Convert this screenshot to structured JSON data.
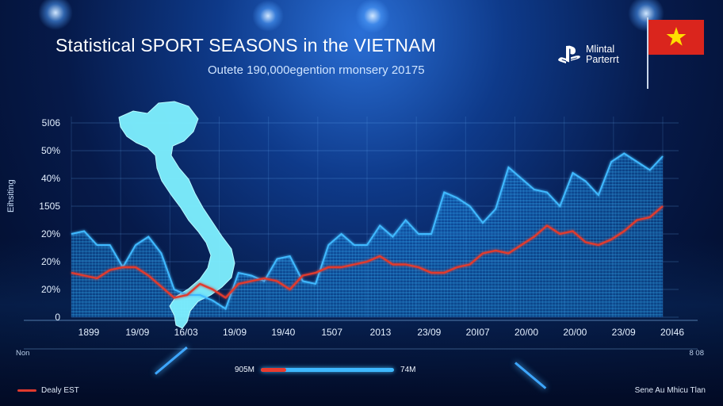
{
  "header": {
    "title": "Statistical SPORT SEASONS in the VIETNAM",
    "subtitle": "Outete 190,000egention rmonsery 20175"
  },
  "brand": {
    "line1": "Mlintal",
    "line2": "Parterrt",
    "icon": "playstation-logo-icon"
  },
  "flag": {
    "icon": "vietnam-flag-icon",
    "field_color": "#da251d",
    "star_color": "#ffde00"
  },
  "axis": {
    "y_title": "Eihsiting"
  },
  "corner_labels": {
    "left": "Non",
    "right": "8 08"
  },
  "progress": {
    "left_label": "905M",
    "right_label": "74M",
    "fraction": 0.19
  },
  "legend": {
    "label": "Dealy EST",
    "color": "#e03a2e"
  },
  "credit": "Sene Au Mhicu Tlan",
  "map": {
    "icon": "vietnam-map-icon",
    "color": "#7ef0ff"
  },
  "chart_data": {
    "type": "area",
    "y_ticks": [
      "5I06",
      "50%",
      "40%",
      "1505",
      "20%",
      "20%",
      "20%",
      "0"
    ],
    "x_ticks": [
      "1899",
      "19/09",
      "16/03",
      "19/09",
      "19/40",
      "1507",
      "2013",
      "23/09",
      "20I07",
      "20/00",
      "20/00",
      "23/09",
      "20I46"
    ],
    "ylim": [
      0,
      7
    ],
    "grid": true,
    "series": [
      {
        "color": "#3fb9ff",
        "values": [
          3.0,
          3.1,
          2.6,
          2.6,
          1.8,
          2.6,
          2.9,
          2.3,
          1.0,
          0.8,
          0.8,
          0.6,
          0.3,
          1.6,
          1.5,
          1.3,
          2.1,
          2.2,
          1.3,
          1.2,
          2.6,
          3.0,
          2.6,
          2.6,
          3.3,
          2.9,
          3.5,
          3.0,
          3.0,
          4.5,
          4.3,
          4.0,
          3.4,
          3.9,
          5.4,
          5.0,
          4.6,
          4.5,
          4.0,
          5.2,
          4.9,
          4.4,
          5.6,
          5.9,
          5.6,
          5.3,
          5.8
        ]
      },
      {
        "color": "#e03a2e",
        "values": [
          1.6,
          1.5,
          1.4,
          1.7,
          1.8,
          1.8,
          1.5,
          1.1,
          0.7,
          0.8,
          1.2,
          1.0,
          0.7,
          1.2,
          1.3,
          1.4,
          1.3,
          1.0,
          1.5,
          1.6,
          1.8,
          1.8,
          1.9,
          2.0,
          2.2,
          1.9,
          1.9,
          1.8,
          1.6,
          1.6,
          1.8,
          1.9,
          2.3,
          2.4,
          2.3,
          2.6,
          2.9,
          3.3,
          3.0,
          3.1,
          2.7,
          2.6,
          2.8,
          3.1,
          3.5,
          3.6,
          4.0
        ]
      }
    ]
  }
}
